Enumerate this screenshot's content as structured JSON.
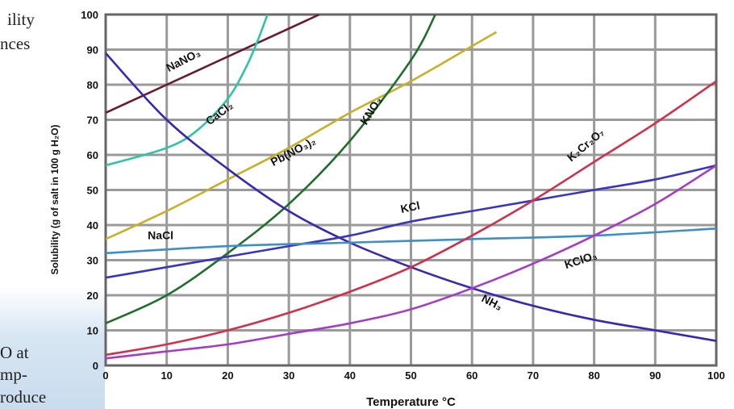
{
  "background_fragments": {
    "line1": "ility",
    "line2": "nces",
    "line3": "O at",
    "line4": "mp-",
    "line5": "roduce"
  },
  "chart_data": {
    "type": "line",
    "title": "",
    "xlabel": "Temperature °C",
    "ylabel": "Solubility (g of salt in 100 g H₂O)",
    "xlim": [
      0,
      100
    ],
    "ylim": [
      0,
      100
    ],
    "x_ticks": [
      0,
      10,
      20,
      30,
      40,
      50,
      60,
      70,
      80,
      90,
      100
    ],
    "y_ticks": [
      0,
      10,
      20,
      30,
      40,
      50,
      60,
      70,
      80,
      90,
      100
    ],
    "grid": true,
    "series": [
      {
        "name": "NaNO₃",
        "color": "#6b1a2e",
        "x": [
          0,
          10,
          20,
          30,
          35
        ],
        "y": [
          72,
          80,
          88,
          96,
          100
        ]
      },
      {
        "name": "CaCl₂",
        "color": "#2ec4a4",
        "x": [
          0,
          10,
          15,
          20,
          23,
          25,
          26.5
        ],
        "y": [
          57,
          62,
          67,
          76,
          85,
          93,
          100
        ]
      },
      {
        "name": "Pb(NO₃)₂",
        "color": "#c8b02a",
        "x": [
          0,
          10,
          20,
          30,
          40,
          50,
          60,
          64
        ],
        "y": [
          36,
          44,
          53,
          62,
          72,
          81,
          91,
          95
        ]
      },
      {
        "name": "KNO₃",
        "color": "#1f6e2a",
        "x": [
          0,
          10,
          20,
          30,
          40,
          50,
          54
        ],
        "y": [
          12,
          20,
          32,
          46,
          64,
          87,
          100
        ]
      },
      {
        "name": "NH₃",
        "color": "#3a25b5",
        "x": [
          0,
          10,
          20,
          30,
          40,
          50,
          60,
          70,
          80,
          90,
          100
        ],
        "y": [
          89,
          70,
          56,
          44,
          35,
          28,
          22,
          17,
          13,
          10,
          7
        ]
      },
      {
        "name": "KCl",
        "color": "#3a35c0",
        "x": [
          0,
          10,
          20,
          30,
          40,
          50,
          60,
          70,
          80,
          90,
          100
        ],
        "y": [
          25,
          28,
          31,
          34,
          37,
          41,
          44,
          47,
          50,
          53,
          57
        ]
      },
      {
        "name": "NaCl",
        "color": "#3d8fc7",
        "x": [
          0,
          20,
          40,
          60,
          80,
          100
        ],
        "y": [
          32,
          34,
          35,
          36,
          37,
          39
        ]
      },
      {
        "name": "K₂Cr₂O₇",
        "color": "#d0304a",
        "x": [
          0,
          10,
          20,
          30,
          40,
          50,
          60,
          70,
          80,
          90,
          100
        ],
        "y": [
          3,
          6,
          10,
          15,
          21,
          28,
          37,
          47,
          58,
          69,
          81
        ]
      },
      {
        "name": "KClO₃",
        "color": "#a43cc4",
        "x": [
          0,
          10,
          20,
          30,
          40,
          50,
          60,
          70,
          80,
          90,
          100
        ],
        "y": [
          2,
          4,
          6,
          9,
          12,
          16,
          22,
          29,
          37,
          46,
          57
        ]
      }
    ],
    "labels": [
      {
        "text": "NaNO₃",
        "x": 13,
        "y": 86,
        "rotate": -27
      },
      {
        "text": "CaCl₂",
        "x": 19,
        "y": 71,
        "rotate": -37
      },
      {
        "text": "Pb(NO₃)₂",
        "x": 31,
        "y": 60,
        "rotate": -28
      },
      {
        "text": "KNO₃",
        "x": 44,
        "y": 72,
        "rotate": -58
      },
      {
        "text": "KCl",
        "x": 50,
        "y": 44,
        "rotate": -12
      },
      {
        "text": "NaCl",
        "x": 9,
        "y": 36,
        "rotate": 0
      },
      {
        "text": "K₂Cr₂O₇",
        "x": 79,
        "y": 62,
        "rotate": -40
      },
      {
        "text": "KClO₃",
        "x": 78,
        "y": 29,
        "rotate": -18
      },
      {
        "text": "NH₃",
        "x": 63,
        "y": 17,
        "rotate": 27
      }
    ]
  }
}
